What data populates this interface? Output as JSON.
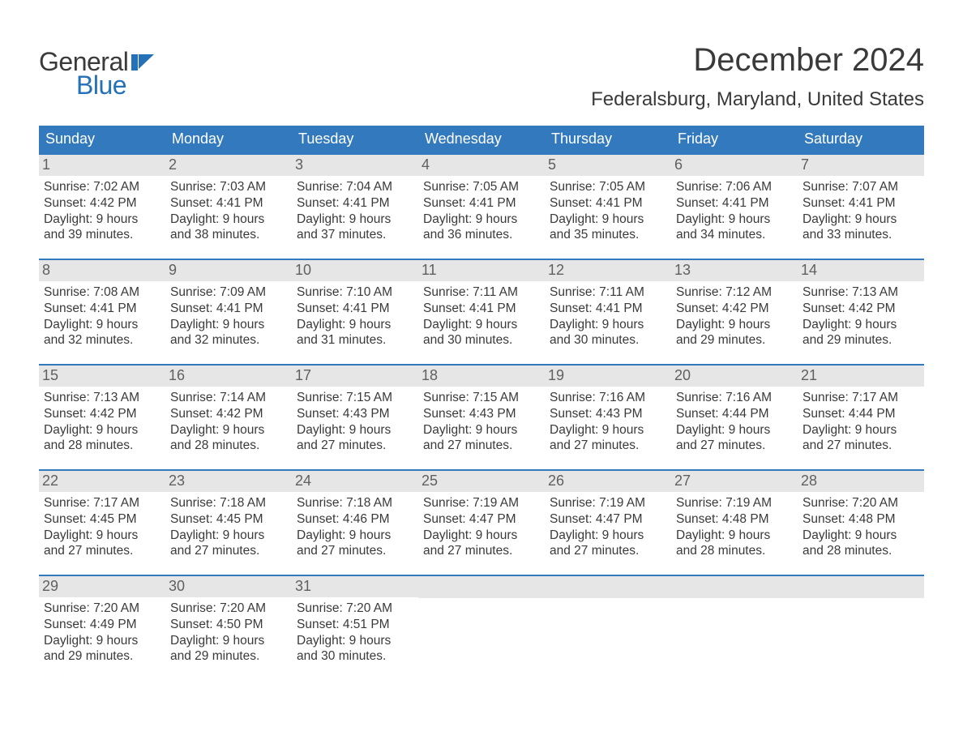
{
  "logo": {
    "word1": "General",
    "word2": "Blue"
  },
  "title": "December 2024",
  "location": "Federalsburg, Maryland, United States",
  "colors": {
    "header_bg": "#3279bd",
    "header_text": "#ffffff",
    "accent_line": "#3279bd",
    "daynum_bg": "#e6e6e6",
    "daynum_text": "#606060",
    "body_text": "#3a3a3a",
    "logo_blue": "#2471b8"
  },
  "day_headers": [
    "Sunday",
    "Monday",
    "Tuesday",
    "Wednesday",
    "Thursday",
    "Friday",
    "Saturday"
  ],
  "weeks": [
    [
      {
        "num": "1",
        "sunrise": "7:02 AM",
        "sunset": "4:42 PM",
        "daylight_h": "9",
        "daylight_m": "39"
      },
      {
        "num": "2",
        "sunrise": "7:03 AM",
        "sunset": "4:41 PM",
        "daylight_h": "9",
        "daylight_m": "38"
      },
      {
        "num": "3",
        "sunrise": "7:04 AM",
        "sunset": "4:41 PM",
        "daylight_h": "9",
        "daylight_m": "37"
      },
      {
        "num": "4",
        "sunrise": "7:05 AM",
        "sunset": "4:41 PM",
        "daylight_h": "9",
        "daylight_m": "36"
      },
      {
        "num": "5",
        "sunrise": "7:05 AM",
        "sunset": "4:41 PM",
        "daylight_h": "9",
        "daylight_m": "35"
      },
      {
        "num": "6",
        "sunrise": "7:06 AM",
        "sunset": "4:41 PM",
        "daylight_h": "9",
        "daylight_m": "34"
      },
      {
        "num": "7",
        "sunrise": "7:07 AM",
        "sunset": "4:41 PM",
        "daylight_h": "9",
        "daylight_m": "33"
      }
    ],
    [
      {
        "num": "8",
        "sunrise": "7:08 AM",
        "sunset": "4:41 PM",
        "daylight_h": "9",
        "daylight_m": "32"
      },
      {
        "num": "9",
        "sunrise": "7:09 AM",
        "sunset": "4:41 PM",
        "daylight_h": "9",
        "daylight_m": "32"
      },
      {
        "num": "10",
        "sunrise": "7:10 AM",
        "sunset": "4:41 PM",
        "daylight_h": "9",
        "daylight_m": "31"
      },
      {
        "num": "11",
        "sunrise": "7:11 AM",
        "sunset": "4:41 PM",
        "daylight_h": "9",
        "daylight_m": "30"
      },
      {
        "num": "12",
        "sunrise": "7:11 AM",
        "sunset": "4:41 PM",
        "daylight_h": "9",
        "daylight_m": "30"
      },
      {
        "num": "13",
        "sunrise": "7:12 AM",
        "sunset": "4:42 PM",
        "daylight_h": "9",
        "daylight_m": "29"
      },
      {
        "num": "14",
        "sunrise": "7:13 AM",
        "sunset": "4:42 PM",
        "daylight_h": "9",
        "daylight_m": "29"
      }
    ],
    [
      {
        "num": "15",
        "sunrise": "7:13 AM",
        "sunset": "4:42 PM",
        "daylight_h": "9",
        "daylight_m": "28"
      },
      {
        "num": "16",
        "sunrise": "7:14 AM",
        "sunset": "4:42 PM",
        "daylight_h": "9",
        "daylight_m": "28"
      },
      {
        "num": "17",
        "sunrise": "7:15 AM",
        "sunset": "4:43 PM",
        "daylight_h": "9",
        "daylight_m": "27"
      },
      {
        "num": "18",
        "sunrise": "7:15 AM",
        "sunset": "4:43 PM",
        "daylight_h": "9",
        "daylight_m": "27"
      },
      {
        "num": "19",
        "sunrise": "7:16 AM",
        "sunset": "4:43 PM",
        "daylight_h": "9",
        "daylight_m": "27"
      },
      {
        "num": "20",
        "sunrise": "7:16 AM",
        "sunset": "4:44 PM",
        "daylight_h": "9",
        "daylight_m": "27"
      },
      {
        "num": "21",
        "sunrise": "7:17 AM",
        "sunset": "4:44 PM",
        "daylight_h": "9",
        "daylight_m": "27"
      }
    ],
    [
      {
        "num": "22",
        "sunrise": "7:17 AM",
        "sunset": "4:45 PM",
        "daylight_h": "9",
        "daylight_m": "27"
      },
      {
        "num": "23",
        "sunrise": "7:18 AM",
        "sunset": "4:45 PM",
        "daylight_h": "9",
        "daylight_m": "27"
      },
      {
        "num": "24",
        "sunrise": "7:18 AM",
        "sunset": "4:46 PM",
        "daylight_h": "9",
        "daylight_m": "27"
      },
      {
        "num": "25",
        "sunrise": "7:19 AM",
        "sunset": "4:47 PM",
        "daylight_h": "9",
        "daylight_m": "27"
      },
      {
        "num": "26",
        "sunrise": "7:19 AM",
        "sunset": "4:47 PM",
        "daylight_h": "9",
        "daylight_m": "27"
      },
      {
        "num": "27",
        "sunrise": "7:19 AM",
        "sunset": "4:48 PM",
        "daylight_h": "9",
        "daylight_m": "28"
      },
      {
        "num": "28",
        "sunrise": "7:20 AM",
        "sunset": "4:48 PM",
        "daylight_h": "9",
        "daylight_m": "28"
      }
    ],
    [
      {
        "num": "29",
        "sunrise": "7:20 AM",
        "sunset": "4:49 PM",
        "daylight_h": "9",
        "daylight_m": "29"
      },
      {
        "num": "30",
        "sunrise": "7:20 AM",
        "sunset": "4:50 PM",
        "daylight_h": "9",
        "daylight_m": "29"
      },
      {
        "num": "31",
        "sunrise": "7:20 AM",
        "sunset": "4:51 PM",
        "daylight_h": "9",
        "daylight_m": "30"
      },
      null,
      null,
      null,
      null
    ]
  ],
  "labels": {
    "sunrise": "Sunrise:",
    "sunset": "Sunset:",
    "daylight": "Daylight:",
    "hours": "hours",
    "and": "and",
    "minutes": "minutes."
  }
}
